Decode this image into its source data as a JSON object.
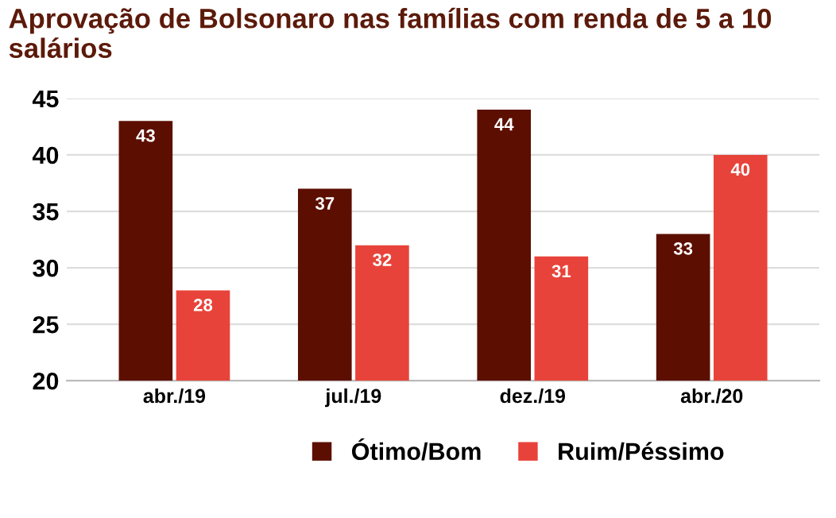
{
  "chart_data": {
    "type": "bar",
    "title": "Aprovação de Bolsonaro nas famílias com renda de 5 a 10 salários",
    "categories": [
      "abr./19",
      "jul./19",
      "dez./19",
      "abr./20"
    ],
    "series": [
      {
        "name": "Ótimo/Bom",
        "color": "#5c0f00",
        "values": [
          43,
          37,
          44,
          33
        ]
      },
      {
        "name": "Ruim/Péssimo",
        "color": "#e8433a",
        "values": [
          28,
          32,
          31,
          40
        ]
      }
    ],
    "ylim": [
      20,
      45
    ],
    "yticks": [
      20,
      25,
      30,
      35,
      40,
      45
    ],
    "grid": "y",
    "legend": "bottom",
    "data_labels": true
  }
}
